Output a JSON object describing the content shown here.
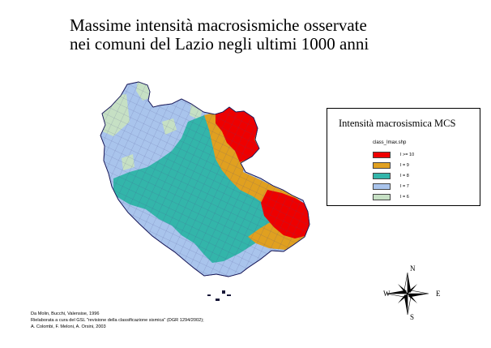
{
  "title": {
    "line1": "Massime intensità macrosismiche osservate",
    "line2": "nei comuni del Lazio negli ultimi 1000 anni"
  },
  "legend": {
    "title": "Intensità macrosismica MCS",
    "subtitle": "class_Imax.shp",
    "classes": [
      {
        "label": "I >= 10",
        "color": "#ee0000"
      },
      {
        "label": "I = 9",
        "color": "#e0a020"
      },
      {
        "label": "I = 8",
        "color": "#33b5aa"
      },
      {
        "label": "I = 7",
        "color": "#a9c4ec"
      },
      {
        "label": "I = 6",
        "color": "#c6e0c4"
      }
    ]
  },
  "compass": {
    "north": "N",
    "south": "S",
    "east": "E",
    "west": "W"
  },
  "credits": [
    "Da Molin, Bucchi, Valensise, 1996",
    "Rielaborata a cura del GSL \"revisione della classificazione sismica\" (DGR 1294/2002);",
    "A. Colombi, F. Meloni, A. Orsini, 2003"
  ]
}
